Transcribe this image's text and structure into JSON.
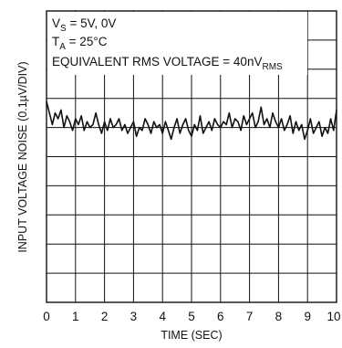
{
  "chart_data": {
    "type": "line",
    "title": "",
    "xlabel": "TIME (SEC)",
    "ylabel": "INPUT VOLTAGE NOISE (0.1µV/DIV)",
    "xlim": [
      0,
      10
    ],
    "x_ticks": [
      "0",
      "1",
      "2",
      "3",
      "4",
      "5",
      "6",
      "7",
      "8",
      "9",
      "10"
    ],
    "y_divisions": 10,
    "y_units_per_div": 0.1,
    "grid": true,
    "annotations": {
      "vs": {
        "main": "V",
        "sub": "S",
        "rest": " = 5V, 0V"
      },
      "ta": {
        "main": "T",
        "sub": "A",
        "rest": " = 25°C"
      },
      "rms": {
        "main": "EQUIVALENT RMS VOLTAGE = 40nV",
        "sub": "RMS"
      }
    },
    "series": [
      {
        "x": [
          0,
          0.1,
          0.2,
          0.3,
          0.4,
          0.5,
          0.6,
          0.7,
          0.8,
          0.9,
          1.0,
          1.1,
          1.2,
          1.3,
          1.4,
          1.5,
          1.6,
          1.7,
          1.8,
          1.9,
          2.0,
          2.1,
          2.2,
          2.3,
          2.4,
          2.5,
          2.6,
          2.7,
          2.8,
          2.9,
          3.0,
          3.1,
          3.2,
          3.3,
          3.4,
          3.5,
          3.6,
          3.7,
          3.8,
          3.9,
          4.0,
          4.1,
          4.2,
          4.3,
          4.4,
          4.5,
          4.6,
          4.7,
          4.8,
          4.9,
          5.0,
          5.1,
          5.2,
          5.3,
          5.4,
          5.5,
          5.6,
          5.7,
          5.8,
          5.9,
          6.0,
          6.1,
          6.2,
          6.3,
          6.4,
          6.5,
          6.6,
          6.7,
          6.8,
          6.9,
          7.0,
          7.1,
          7.2,
          7.3,
          7.4,
          7.5,
          7.6,
          7.7,
          7.8,
          7.9,
          8.0,
          8.1,
          8.2,
          8.3,
          8.4,
          8.5,
          8.6,
          8.7,
          8.8,
          8.9,
          9.0,
          9.1,
          9.2,
          9.3,
          9.4,
          9.5,
          9.6,
          9.7,
          9.8,
          9.9,
          10.0
        ],
        "y": [
          6.9,
          6.5,
          6.1,
          6.5,
          6.3,
          6.6,
          6.0,
          6.4,
          6.2,
          5.9,
          6.3,
          6.1,
          6.4,
          5.9,
          6.2,
          6.0,
          6.1,
          6.5,
          6.1,
          5.8,
          6.2,
          5.9,
          6.3,
          6.0,
          6.1,
          6.3,
          5.9,
          6.1,
          5.8,
          6.0,
          6.2,
          5.7,
          6.0,
          5.9,
          6.3,
          6.1,
          5.8,
          6.2,
          6.0,
          6.1,
          5.8,
          6.2,
          5.9,
          5.6,
          6.0,
          6.3,
          5.8,
          6.1,
          6.3,
          5.9,
          5.7,
          6.1,
          5.9,
          6.4,
          5.8,
          6.0,
          6.2,
          5.9,
          6.3,
          6.1,
          6.0,
          6.2,
          6.1,
          6.5,
          6.0,
          6.3,
          6.2,
          5.9,
          6.4,
          6.1,
          6.3,
          6.5,
          6.0,
          6.2,
          6.7,
          6.1,
          6.3,
          6.0,
          6.5,
          6.2,
          6.0,
          6.3,
          5.9,
          6.1,
          6.4,
          5.8,
          6.2,
          5.9,
          6.1,
          5.6,
          5.9,
          6.3,
          5.8,
          6.0,
          6.2,
          5.7,
          6.0,
          5.8,
          6.3,
          5.9,
          6.6
        ]
      }
    ]
  }
}
